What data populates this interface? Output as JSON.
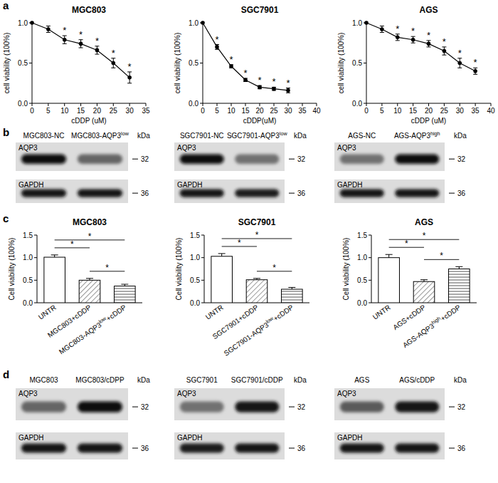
{
  "panel_labels": [
    "a",
    "b",
    "c",
    "d"
  ],
  "chart_data": [
    {
      "type": "line",
      "title": "MGC803",
      "x_label": "cDDP (uM)",
      "y_label": "cell viability (100%)",
      "x": [
        0,
        5,
        10,
        15,
        20,
        25,
        30
      ],
      "values": [
        1.0,
        0.92,
        0.79,
        0.74,
        0.66,
        0.5,
        0.32
      ],
      "errors": [
        0,
        0.04,
        0.05,
        0.05,
        0.05,
        0.06,
        0.07
      ],
      "color": "#000000",
      "marker": "circle",
      "xlim": [
        0,
        35
      ],
      "xticks": [
        0,
        5,
        10,
        15,
        20,
        25,
        30,
        35
      ],
      "ylim": [
        0,
        1
      ],
      "yticks": [
        {
          "value": 0,
          "label": "0.0"
        },
        0.5,
        {
          "value": 1,
          "label": "1.0"
        }
      ],
      "grid": false,
      "annotations": [
        {
          "x": 10,
          "text": "*"
        },
        {
          "x": 15,
          "text": "*"
        },
        {
          "x": 20,
          "text": "*"
        },
        {
          "x": 25,
          "text": "*"
        },
        {
          "x": 30,
          "text": "*"
        }
      ]
    },
    {
      "type": "line",
      "title": "SGC7901",
      "x_label": "cDDP(uM)",
      "y_label": "cell viability (100%)",
      "x": [
        0,
        5,
        10,
        15,
        20,
        25,
        30
      ],
      "values": [
        1.0,
        0.7,
        0.46,
        0.29,
        0.2,
        0.18,
        0.16
      ],
      "errors": [
        0,
        0.03,
        0.02,
        0.02,
        0.02,
        0.02,
        0.03
      ],
      "color": "#000000",
      "marker": "circle",
      "xlim": [
        0,
        40
      ],
      "xticks": [
        0,
        5,
        10,
        15,
        20,
        25,
        30,
        35,
        40
      ],
      "ylim": [
        0,
        1
      ],
      "yticks": [
        {
          "value": 0,
          "label": "0.0"
        },
        0.5,
        {
          "value": 1,
          "label": "1.0"
        }
      ],
      "grid": false,
      "annotations": [
        {
          "x": 5,
          "text": "*"
        },
        {
          "x": 10,
          "text": "*"
        },
        {
          "x": 15,
          "text": "*"
        },
        {
          "x": 20,
          "text": "*"
        },
        {
          "x": 25,
          "text": "*"
        },
        {
          "x": 30,
          "text": "*"
        }
      ]
    },
    {
      "type": "line",
      "title": "AGS",
      "x_label": "cDDP (uM)",
      "y_label": "cell viability (100%)",
      "x": [
        0,
        5,
        10,
        15,
        20,
        25,
        30,
        35
      ],
      "values": [
        1.0,
        0.92,
        0.82,
        0.79,
        0.74,
        0.65,
        0.5,
        0.4
      ],
      "errors": [
        0,
        0.04,
        0.04,
        0.04,
        0.04,
        0.05,
        0.06,
        0.04
      ],
      "color": "#000000",
      "marker": "circle",
      "xlim": [
        0,
        40
      ],
      "xticks": [
        0,
        5,
        10,
        15,
        20,
        25,
        30,
        35,
        40
      ],
      "ylim": [
        0,
        1
      ],
      "yticks": [
        {
          "value": 0,
          "label": "0.0"
        },
        0.5,
        {
          "value": 1,
          "label": "1.0"
        }
      ],
      "grid": false,
      "annotations": [
        {
          "x": 10,
          "text": "*"
        },
        {
          "x": 15,
          "text": "*"
        },
        {
          "x": 20,
          "text": "*"
        },
        {
          "x": 25,
          "text": "*"
        },
        {
          "x": 30,
          "text": "*"
        },
        {
          "x": 35,
          "text": "*"
        }
      ]
    },
    {
      "type": "bar",
      "title": "MGC803",
      "y_label": "Cell viability (100%)",
      "categories": [
        "UNTR",
        "MGC803+cDDP",
        "MGC803-AQP3low+cDDP"
      ],
      "values": [
        1.01,
        0.5,
        0.37
      ],
      "errors": [
        0.05,
        0.04,
        0.04
      ],
      "color": "#000000",
      "ylim": [
        0,
        1.5
      ],
      "yticks": [
        {
          "value": 0,
          "label": "0.0"
        },
        0.5,
        {
          "value": 1,
          "label": "1.0"
        },
        1.5
      ],
      "grid": false,
      "comparisons": [
        {
          "pair": [
            0,
            1
          ],
          "text": "*"
        },
        {
          "pair": [
            0,
            2
          ],
          "text": "*"
        },
        {
          "pair": [
            1,
            2
          ],
          "text": "*"
        }
      ]
    },
    {
      "type": "bar",
      "title": "SGC7901",
      "y_label": "Cell viability (100%)",
      "categories": [
        "UNTR",
        "SGC7901+cDDP",
        "SGC7901-AQP3low+cDDP"
      ],
      "values": [
        1.03,
        0.51,
        0.3
      ],
      "errors": [
        0.06,
        0.03,
        0.04
      ],
      "color": "#000000",
      "ylim": [
        0,
        1.5
      ],
      "yticks": [
        {
          "value": 0,
          "label": "0.0"
        },
        0.5,
        {
          "value": 1,
          "label": "1.0"
        },
        1.5
      ],
      "grid": false,
      "comparisons": [
        {
          "pair": [
            0,
            1
          ],
          "text": "*"
        },
        {
          "pair": [
            0,
            2
          ],
          "text": "*"
        },
        {
          "pair": [
            1,
            2
          ],
          "text": "*"
        }
      ]
    },
    {
      "type": "bar",
      "title": "AGS",
      "y_label": "Cell viability (100%)",
      "categories": [
        "UNTR",
        "AGS+cDDP",
        "AGS-AQP3high+cDDP"
      ],
      "values": [
        1.0,
        0.47,
        0.75
      ],
      "errors": [
        0.07,
        0.04,
        0.05
      ],
      "color": "#000000",
      "ylim": [
        0,
        1.5
      ],
      "yticks": [
        {
          "value": 0,
          "label": "0.0"
        },
        0.5,
        {
          "value": 1,
          "label": "1.0"
        },
        1.5
      ],
      "grid": false,
      "comparisons": [
        {
          "pair": [
            0,
            1
          ],
          "text": "*"
        },
        {
          "pair": [
            0,
            2
          ],
          "text": "*"
        },
        {
          "pair": [
            1,
            2
          ],
          "text": "*"
        }
      ]
    }
  ],
  "blots": [
    {
      "unit": "kDa",
      "lanes": [
        "MGC803-NC",
        "MGC803-AQP3low"
      ],
      "rows": [
        {
          "protein": "AQP3",
          "kda": 32,
          "bands": [
            0.95,
            0.55
          ]
        },
        {
          "protein": "GAPDH",
          "kda": 36,
          "bands": [
            0.9,
            0.9
          ]
        }
      ]
    },
    {
      "unit": "kDa",
      "lanes": [
        "SGC7901-NC",
        "SGC7901-AQP3low"
      ],
      "rows": [
        {
          "protein": "AQP3",
          "kda": 32,
          "bands": [
            0.95,
            0.5
          ]
        },
        {
          "protein": "GAPDH",
          "kda": 36,
          "bands": [
            0.9,
            0.88
          ]
        }
      ]
    },
    {
      "unit": "kDa",
      "lanes": [
        "AGS-NC",
        "AGS-AQP3high"
      ],
      "rows": [
        {
          "protein": "AQP3",
          "kda": 32,
          "bands": [
            0.5,
            0.95
          ]
        },
        {
          "protein": "GAPDH",
          "kda": 36,
          "bands": [
            0.9,
            0.9
          ]
        }
      ]
    },
    {
      "unit": "kDa",
      "lanes": [
        "MGC803",
        "MGC803/cDPP"
      ],
      "rows": [
        {
          "protein": "AQP3",
          "kda": 32,
          "bands": [
            0.55,
            0.95
          ]
        },
        {
          "protein": "GAPDH",
          "kda": 36,
          "bands": [
            0.9,
            0.9
          ]
        }
      ]
    },
    {
      "unit": "kDa",
      "lanes": [
        "SGC7901",
        "SGC7901/cDDP"
      ],
      "rows": [
        {
          "protein": "AQP3",
          "kda": 32,
          "bands": [
            0.5,
            0.9
          ]
        },
        {
          "protein": "GAPDH",
          "kda": 36,
          "bands": [
            0.88,
            0.9
          ]
        }
      ]
    },
    {
      "unit": "kDa",
      "lanes": [
        "AGS",
        "AGS/cDDP"
      ],
      "rows": [
        {
          "protein": "AQP3",
          "kda": 32,
          "bands": [
            0.6,
            0.9
          ]
        },
        {
          "protein": "GAPDH",
          "kda": 36,
          "bands": [
            0.9,
            0.9
          ]
        }
      ]
    }
  ]
}
